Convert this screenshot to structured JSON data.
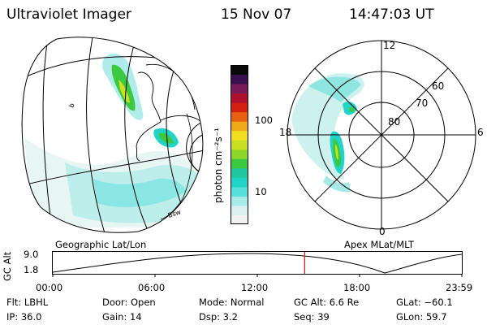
{
  "header": {
    "title": "Ultraviolet Imager",
    "date": "15 Nov 07",
    "time": "14:47:03 UT"
  },
  "colorbar": {
    "label": "photon cm⁻²s⁻¹",
    "ticks": [
      "100",
      "10"
    ],
    "scale": "log",
    "colors": [
      "#f2f2f2",
      "#d9f0ee",
      "#a6eae8",
      "#55e0dc",
      "#22d3c8",
      "#20c8a0",
      "#3cc840",
      "#8fd62a",
      "#c8e020",
      "#f0e020",
      "#f0a818",
      "#e86010",
      "#d42010",
      "#b01030",
      "#7a1a5a",
      "#3a1050",
      "#0a0a0a"
    ]
  },
  "left_map": {
    "caption": "Geographic Lat/Lon",
    "coast_labels": [
      "b",
      "Bsw"
    ]
  },
  "right_map": {
    "caption": "Apex MLat/MLT",
    "mlt_labels": {
      "top": "12",
      "left": "18",
      "right": "6",
      "bottom": "0"
    },
    "lat_labels": [
      "60",
      "70",
      "80"
    ]
  },
  "timeline": {
    "ylabel": "GC Alt",
    "ymax": "9.0",
    "ymin": "1.8",
    "x_ticks": [
      "00:00",
      "06:00",
      "12:00",
      "18:00",
      "23:59"
    ],
    "current_time_hours": 14.78
  },
  "info": {
    "flt": "Flt: LBHL",
    "ip": "IP: 36.0",
    "door": "Door: Open",
    "gain": "Gain: 14",
    "mode": "Mode: Normal",
    "dsp": "Dsp:     3.2",
    "gcalt": "GC Alt: 6.6 Re",
    "seq": "Seq: 39",
    "glat": "GLat: −60.1",
    "glon": "GLon:   59.7"
  }
}
